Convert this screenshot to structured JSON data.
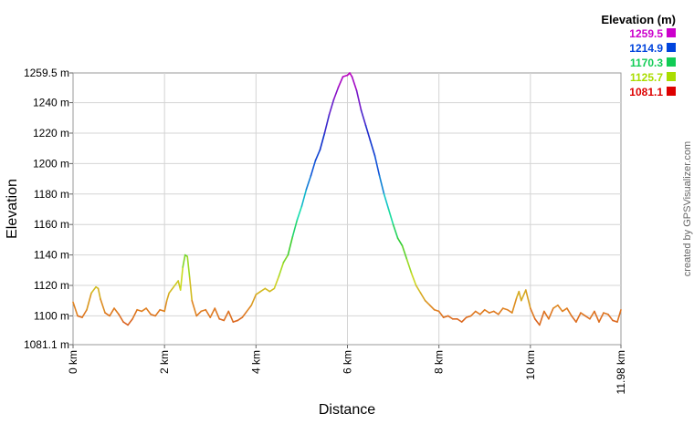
{
  "chart_data": {
    "type": "line",
    "title": "",
    "xlabel": "Distance",
    "ylabel": "Elevation",
    "xlim": [
      0,
      11.98
    ],
    "ylim": [
      1081.1,
      1259.5
    ],
    "grid": true,
    "x_ticks": [
      {
        "value": 0,
        "label": "0 km"
      },
      {
        "value": 2,
        "label": "2 km"
      },
      {
        "value": 4,
        "label": "4 km"
      },
      {
        "value": 6,
        "label": "6 km"
      },
      {
        "value": 8,
        "label": "8 km"
      },
      {
        "value": 10,
        "label": "10 km"
      },
      {
        "value": 11.98,
        "label": "11.98 km"
      }
    ],
    "y_ticks": [
      {
        "value": 1081.1,
        "label": "1081.1 m"
      },
      {
        "value": 1100,
        "label": "1100 m"
      },
      {
        "value": 1120,
        "label": "1120 m"
      },
      {
        "value": 1140,
        "label": "1140 m"
      },
      {
        "value": 1160,
        "label": "1160 m"
      },
      {
        "value": 1180,
        "label": "1180 m"
      },
      {
        "value": 1200,
        "label": "1200 m"
      },
      {
        "value": 1220,
        "label": "1220 m"
      },
      {
        "value": 1240,
        "label": "1240 m"
      },
      {
        "value": 1259.5,
        "label": "1259.5 m"
      }
    ],
    "legend": {
      "title": "Elevation (m)",
      "position": "top-right",
      "items": [
        {
          "label": "1259.5",
          "color": "#cc00cc"
        },
        {
          "label": "1214.9",
          "color": "#0044dd"
        },
        {
          "label": "1170.3",
          "color": "#11cc55"
        },
        {
          "label": "1125.7",
          "color": "#aadd00"
        },
        {
          "label": "1081.1",
          "color": "#dd0000"
        }
      ]
    },
    "color_scale": [
      {
        "value": 1081.1,
        "color": "#d03020"
      },
      {
        "value": 1104.0,
        "color": "#e08020"
      },
      {
        "value": 1125.7,
        "color": "#c8e020"
      },
      {
        "value": 1148.0,
        "color": "#30cc30"
      },
      {
        "value": 1170.3,
        "color": "#10e0c0"
      },
      {
        "value": 1192.0,
        "color": "#1060dd"
      },
      {
        "value": 1214.9,
        "color": "#1030cc"
      },
      {
        "value": 1236.0,
        "color": "#6020cc"
      },
      {
        "value": 1259.5,
        "color": "#c000c0"
      }
    ],
    "series": [
      {
        "points": [
          [
            0,
            1109
          ],
          [
            0.1,
            1100
          ],
          [
            0.2,
            1099
          ],
          [
            0.3,
            1104
          ],
          [
            0.4,
            1115
          ],
          [
            0.5,
            1119
          ],
          [
            0.55,
            1118
          ],
          [
            0.6,
            1111
          ],
          [
            0.7,
            1102
          ],
          [
            0.8,
            1100
          ],
          [
            0.9,
            1105
          ],
          [
            1.0,
            1101
          ],
          [
            1.1,
            1096
          ],
          [
            1.2,
            1094
          ],
          [
            1.3,
            1098
          ],
          [
            1.4,
            1104
          ],
          [
            1.5,
            1103
          ],
          [
            1.6,
            1105
          ],
          [
            1.7,
            1101
          ],
          [
            1.8,
            1100
          ],
          [
            1.9,
            1104
          ],
          [
            2.0,
            1103
          ],
          [
            2.05,
            1110
          ],
          [
            2.1,
            1115
          ],
          [
            2.2,
            1119
          ],
          [
            2.3,
            1123
          ],
          [
            2.35,
            1117
          ],
          [
            2.4,
            1132
          ],
          [
            2.45,
            1140
          ],
          [
            2.5,
            1139
          ],
          [
            2.55,
            1125
          ],
          [
            2.6,
            1110
          ],
          [
            2.7,
            1100
          ],
          [
            2.8,
            1103
          ],
          [
            2.9,
            1104
          ],
          [
            3.0,
            1099
          ],
          [
            3.1,
            1105
          ],
          [
            3.2,
            1098
          ],
          [
            3.3,
            1097
          ],
          [
            3.4,
            1103
          ],
          [
            3.5,
            1096
          ],
          [
            3.6,
            1097
          ],
          [
            3.7,
            1099
          ],
          [
            3.8,
            1103
          ],
          [
            3.9,
            1107
          ],
          [
            4.0,
            1114
          ],
          [
            4.1,
            1116
          ],
          [
            4.2,
            1118
          ],
          [
            4.3,
            1116
          ],
          [
            4.4,
            1118
          ],
          [
            4.5,
            1126
          ],
          [
            4.6,
            1135
          ],
          [
            4.7,
            1140
          ],
          [
            4.8,
            1152
          ],
          [
            4.9,
            1163
          ],
          [
            5.0,
            1172
          ],
          [
            5.1,
            1183
          ],
          [
            5.2,
            1192
          ],
          [
            5.3,
            1202
          ],
          [
            5.4,
            1209
          ],
          [
            5.5,
            1220
          ],
          [
            5.6,
            1232
          ],
          [
            5.7,
            1242
          ],
          [
            5.8,
            1250
          ],
          [
            5.9,
            1257
          ],
          [
            6.0,
            1258
          ],
          [
            6.05,
            1259.5
          ],
          [
            6.1,
            1257
          ],
          [
            6.2,
            1248
          ],
          [
            6.3,
            1235
          ],
          [
            6.4,
            1225
          ],
          [
            6.5,
            1215
          ],
          [
            6.6,
            1205
          ],
          [
            6.7,
            1192
          ],
          [
            6.8,
            1180
          ],
          [
            6.9,
            1170
          ],
          [
            7.0,
            1160
          ],
          [
            7.1,
            1151
          ],
          [
            7.2,
            1146
          ],
          [
            7.3,
            1137
          ],
          [
            7.4,
            1128
          ],
          [
            7.5,
            1120
          ],
          [
            7.6,
            1115
          ],
          [
            7.7,
            1110
          ],
          [
            7.8,
            1107
          ],
          [
            7.9,
            1104
          ],
          [
            8.0,
            1103
          ],
          [
            8.1,
            1099
          ],
          [
            8.2,
            1100
          ],
          [
            8.3,
            1098
          ],
          [
            8.4,
            1098
          ],
          [
            8.5,
            1096
          ],
          [
            8.6,
            1099
          ],
          [
            8.7,
            1100
          ],
          [
            8.8,
            1103
          ],
          [
            8.9,
            1101
          ],
          [
            9.0,
            1104
          ],
          [
            9.1,
            1102
          ],
          [
            9.2,
            1103
          ],
          [
            9.3,
            1101
          ],
          [
            9.4,
            1105
          ],
          [
            9.5,
            1104
          ],
          [
            9.6,
            1102
          ],
          [
            9.7,
            1112
          ],
          [
            9.75,
            1116
          ],
          [
            9.8,
            1110
          ],
          [
            9.9,
            1117
          ],
          [
            10.0,
            1105
          ],
          [
            10.1,
            1098
          ],
          [
            10.2,
            1094
          ],
          [
            10.3,
            1103
          ],
          [
            10.4,
            1098
          ],
          [
            10.5,
            1105
          ],
          [
            10.6,
            1107
          ],
          [
            10.7,
            1103
          ],
          [
            10.8,
            1105
          ],
          [
            10.9,
            1100
          ],
          [
            11.0,
            1096
          ],
          [
            11.1,
            1102
          ],
          [
            11.2,
            1100
          ],
          [
            11.3,
            1098
          ],
          [
            11.4,
            1103
          ],
          [
            11.5,
            1096
          ],
          [
            11.6,
            1102
          ],
          [
            11.7,
            1101
          ],
          [
            11.8,
            1097
          ],
          [
            11.9,
            1096
          ],
          [
            11.98,
            1104
          ]
        ]
      }
    ]
  },
  "credit": "created by GPSVisualizer.com"
}
